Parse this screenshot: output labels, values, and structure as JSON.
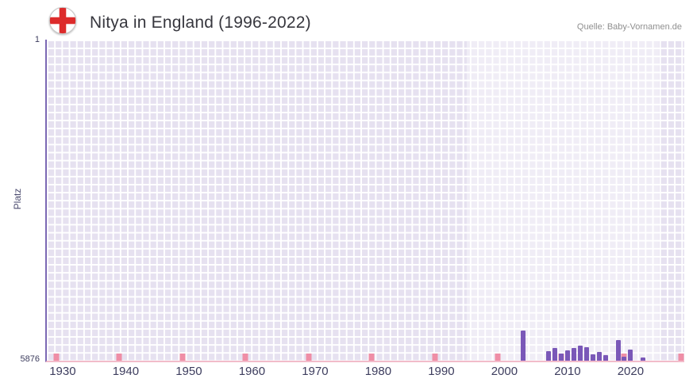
{
  "header": {
    "title": "Nitya in England (1996-2022)",
    "source": "Quelle: Baby-Vornamen.de",
    "flag_icon": "england-flag-icon"
  },
  "colors": {
    "bar": "#7a58b8",
    "plot_background": "#e6e1f0",
    "grid": "#ffffff",
    "highlight_band": "rgba(255,255,255,0.40)",
    "decade_marker": "#ef8ea6",
    "axis_left": "#7b68b4",
    "axis_bottom": "#f2bcca",
    "flag_red": "#dd2b2b"
  },
  "chart_data": {
    "type": "bar",
    "title": "Nitya in England (1996-2022)",
    "xlabel": "",
    "ylabel": "Platz",
    "legend": false,
    "grid": true,
    "y_axis": {
      "min": 1,
      "max": 5876,
      "inverted": true,
      "top_tick": "1",
      "bottom_tick": "5876"
    },
    "x_axis": {
      "min": 1927.5,
      "max": 2028.5,
      "tick_years": [
        1930,
        1940,
        1950,
        1960,
        1970,
        1980,
        1990,
        2000,
        2010,
        2020
      ],
      "marker_years": [
        1929,
        1939,
        1949,
        1959,
        1969,
        1979,
        1989,
        1999,
        2009,
        2019,
        2028
      ]
    },
    "highlight_band": {
      "start_year": 1994,
      "end_year": 2024.5
    },
    "series": [
      {
        "name": "Platz",
        "points": [
          {
            "year": 2003,
            "rank": 5320
          },
          {
            "year": 2007,
            "rank": 5700
          },
          {
            "year": 2008,
            "rank": 5640
          },
          {
            "year": 2009,
            "rank": 5750
          },
          {
            "year": 2010,
            "rank": 5690
          },
          {
            "year": 2011,
            "rank": 5640
          },
          {
            "year": 2012,
            "rank": 5600
          },
          {
            "year": 2013,
            "rank": 5630
          },
          {
            "year": 2014,
            "rank": 5760
          },
          {
            "year": 2015,
            "rank": 5710
          },
          {
            "year": 2016,
            "rank": 5770
          },
          {
            "year": 2018,
            "rank": 5500
          },
          {
            "year": 2019,
            "rank": 5800
          },
          {
            "year": 2020,
            "rank": 5670
          },
          {
            "year": 2022,
            "rank": 5820
          }
        ]
      }
    ]
  }
}
